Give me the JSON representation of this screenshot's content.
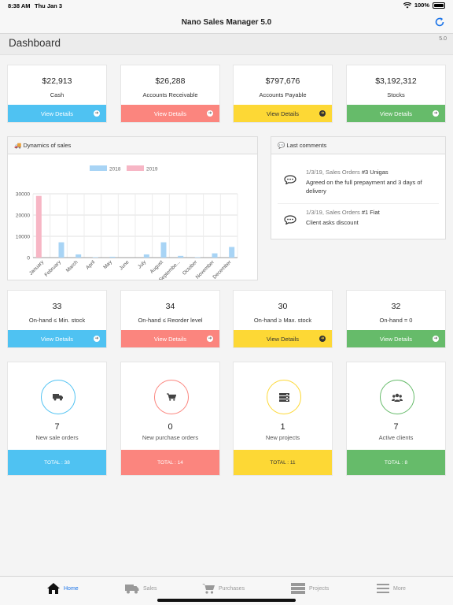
{
  "status": {
    "time": "8:38 AM",
    "date": "Thu Jan 3",
    "battery": "100%"
  },
  "app": {
    "title": "Nano Sales Manager 5.0",
    "version": "5.0"
  },
  "page": {
    "title": "Dashboard"
  },
  "summary": [
    {
      "value": "$22,913",
      "label": "Cash",
      "action": "View Details",
      "color": "#4fc2f2"
    },
    {
      "value": "$26,288",
      "label": "Accounts Receivable",
      "action": "View Details",
      "color": "#fb857e"
    },
    {
      "value": "$797,676",
      "label": "Accounts Payable",
      "action": "View Details",
      "color": "#fdd835"
    },
    {
      "value": "$3,192,312",
      "label": "Stocks",
      "action": "View Details",
      "color": "#66bb6a"
    }
  ],
  "sales_panel": {
    "title": "Dynamics of sales",
    "icon": "truck-icon"
  },
  "chart_data": {
    "type": "bar",
    "categories": [
      "January",
      "February",
      "March",
      "April",
      "May",
      "June",
      "July",
      "August",
      "September",
      "October",
      "November",
      "December"
    ],
    "tick_labels": [
      "January",
      "February",
      "March",
      "April",
      "May",
      "June",
      "July",
      "August",
      "Septembe...",
      "October",
      "November",
      "December"
    ],
    "series": [
      {
        "name": "2018",
        "color": "#a8d4f5",
        "values": [
          0,
          7200,
          1500,
          200,
          400,
          0,
          1500,
          7200,
          800,
          200,
          2000,
          5000
        ]
      },
      {
        "name": "2019",
        "color": "#f7b6c5",
        "values": [
          29000,
          0,
          0,
          0,
          0,
          0,
          0,
          0,
          0,
          0,
          0,
          0
        ]
      }
    ],
    "yticks": [
      "0",
      "10000",
      "20000",
      "30000"
    ],
    "ylim": [
      0,
      30000
    ],
    "legend": "top-center",
    "grid": true
  },
  "comments_panel": {
    "title": "Last comments",
    "items": [
      {
        "date": "1/3/19, Sales Orders ",
        "number": "#3",
        "client": " Unigas",
        "text": "Agreed on the full prepayment and 3 days of delivery"
      },
      {
        "date": "1/3/19, Sales Orders ",
        "number": "#1",
        "client": " Fiat",
        "text": "Client asks discount"
      }
    ]
  },
  "stock": [
    {
      "value": "33",
      "label": "On-hand ≤ Min. stock",
      "action": "View Details"
    },
    {
      "value": "34",
      "label": "On-hand ≤ Reorder level",
      "action": "View Details"
    },
    {
      "value": "30",
      "label": "On-hand ≥ Max. stock",
      "action": "View Details"
    },
    {
      "value": "32",
      "label": "On-hand = 0",
      "action": "View Details"
    }
  ],
  "activity": [
    {
      "icon": "truck-icon",
      "value": "7",
      "label": "New sale orders",
      "total": "TOTAL : 38",
      "color": "#4fc2f2"
    },
    {
      "icon": "cart-icon",
      "value": "0",
      "label": "New purchase orders",
      "total": "TOTAL : 14",
      "color": "#fb857e"
    },
    {
      "icon": "server-icon",
      "value": "1",
      "label": "New projects",
      "total": "TOTAL : 11",
      "color": "#fdd835"
    },
    {
      "icon": "users-icon",
      "value": "7",
      "label": "Active clients",
      "total": "TOTAL : 8",
      "color": "#66bb6a"
    }
  ],
  "tabs": [
    {
      "label": "Home",
      "icon": "home-icon",
      "active": true
    },
    {
      "label": "Sales",
      "icon": "truck-icon",
      "active": false
    },
    {
      "label": "Purchases",
      "icon": "cart-icon",
      "active": false
    },
    {
      "label": "Projects",
      "icon": "server-icon",
      "active": false
    },
    {
      "label": "More",
      "icon": "menu-icon",
      "active": false
    }
  ]
}
